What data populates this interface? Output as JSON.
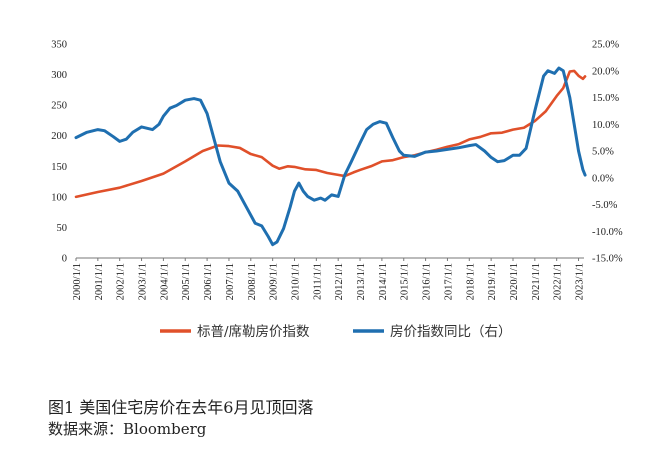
{
  "chart_data": {
    "type": "line",
    "x_start": "2000/1/1",
    "x_end": "2023/4/1",
    "x_tick_labels": [
      "2000/1/1",
      "2001/1/1",
      "2002/1/1",
      "2003/1/1",
      "2004/1/1",
      "2005/1/1",
      "2006/1/1",
      "2007/1/1",
      "2008/1/1",
      "2009/1/1",
      "2010/1/1",
      "2011/1/1",
      "2012/1/1",
      "2013/1/1",
      "2014/1/1",
      "2015/1/1",
      "2016/1/1",
      "2017/1/1",
      "2018/1/1",
      "2019/1/1",
      "2020/1/1",
      "2021/1/1",
      "2022/1/1",
      "2023/1/1"
    ],
    "y_left": {
      "min": 0,
      "max": 350,
      "ticks": [
        "0",
        "50",
        "100",
        "150",
        "200",
        "250",
        "300",
        "350"
      ]
    },
    "y_right": {
      "min": -15,
      "max": 25,
      "ticks": [
        "-15.0%",
        "-10.0%",
        "-5.0%",
        "0.0%",
        "5.0%",
        "10.0%",
        "15.0%",
        "20.0%",
        "25.0%"
      ]
    },
    "series": [
      {
        "name": "标普/席勒房价指数",
        "axis": "left",
        "color": "#e0502a",
        "points": [
          [
            2000.0,
            100
          ],
          [
            2001.0,
            108
          ],
          [
            2002.0,
            115
          ],
          [
            2003.0,
            126
          ],
          [
            2004.0,
            138
          ],
          [
            2005.0,
            158
          ],
          [
            2005.8,
            175
          ],
          [
            2006.5,
            184
          ],
          [
            2007.0,
            183
          ],
          [
            2007.5,
            180
          ],
          [
            2008.0,
            170
          ],
          [
            2008.5,
            165
          ],
          [
            2009.0,
            151
          ],
          [
            2009.3,
            146
          ],
          [
            2009.7,
            150
          ],
          [
            2010.0,
            149
          ],
          [
            2010.5,
            145
          ],
          [
            2011.0,
            144
          ],
          [
            2011.5,
            139
          ],
          [
            2012.0,
            136
          ],
          [
            2012.3,
            134
          ],
          [
            2012.7,
            140
          ],
          [
            2013.0,
            144
          ],
          [
            2013.5,
            150
          ],
          [
            2014.0,
            158
          ],
          [
            2014.5,
            160
          ],
          [
            2015.0,
            165
          ],
          [
            2015.5,
            168
          ],
          [
            2016.0,
            173
          ],
          [
            2016.5,
            177
          ],
          [
            2017.0,
            182
          ],
          [
            2017.5,
            186
          ],
          [
            2018.0,
            194
          ],
          [
            2018.5,
            198
          ],
          [
            2019.0,
            204
          ],
          [
            2019.5,
            205
          ],
          [
            2020.0,
            210
          ],
          [
            2020.5,
            213
          ],
          [
            2021.0,
            224
          ],
          [
            2021.5,
            240
          ],
          [
            2022.0,
            265
          ],
          [
            2022.3,
            278
          ],
          [
            2022.6,
            305
          ],
          [
            2022.8,
            306
          ],
          [
            2023.0,
            298
          ],
          [
            2023.2,
            293
          ],
          [
            2023.3,
            297
          ]
        ]
      },
      {
        "name": "房价指数同比（右）",
        "axis": "right",
        "color": "#1f6fb0",
        "points": [
          [
            2000.0,
            7.5
          ],
          [
            2000.5,
            8.5
          ],
          [
            2001.0,
            9.0
          ],
          [
            2001.3,
            8.8
          ],
          [
            2001.7,
            7.7
          ],
          [
            2002.0,
            6.8
          ],
          [
            2002.3,
            7.2
          ],
          [
            2002.6,
            8.5
          ],
          [
            2003.0,
            9.5
          ],
          [
            2003.5,
            9.0
          ],
          [
            2003.8,
            10.0
          ],
          [
            2004.0,
            11.5
          ],
          [
            2004.3,
            13.0
          ],
          [
            2004.6,
            13.5
          ],
          [
            2005.0,
            14.5
          ],
          [
            2005.4,
            14.8
          ],
          [
            2005.7,
            14.5
          ],
          [
            2006.0,
            12.0
          ],
          [
            2006.3,
            7.5
          ],
          [
            2006.6,
            3.0
          ],
          [
            2007.0,
            -1.0
          ],
          [
            2007.4,
            -2.5
          ],
          [
            2007.8,
            -5.5
          ],
          [
            2008.2,
            -8.5
          ],
          [
            2008.5,
            -9.0
          ],
          [
            2008.8,
            -11.0
          ],
          [
            2009.0,
            -12.5
          ],
          [
            2009.2,
            -12.0
          ],
          [
            2009.5,
            -9.5
          ],
          [
            2009.8,
            -5.5
          ],
          [
            2010.0,
            -2.5
          ],
          [
            2010.2,
            -1.0
          ],
          [
            2010.4,
            -2.5
          ],
          [
            2010.6,
            -3.5
          ],
          [
            2010.9,
            -4.2
          ],
          [
            2011.2,
            -3.8
          ],
          [
            2011.4,
            -4.2
          ],
          [
            2011.7,
            -3.2
          ],
          [
            2012.0,
            -3.5
          ],
          [
            2012.3,
            0.5
          ],
          [
            2012.6,
            3.0
          ],
          [
            2013.0,
            6.5
          ],
          [
            2013.3,
            9.0
          ],
          [
            2013.6,
            10.0
          ],
          [
            2013.9,
            10.5
          ],
          [
            2014.2,
            10.2
          ],
          [
            2014.5,
            7.5
          ],
          [
            2014.8,
            5.0
          ],
          [
            2015.0,
            4.2
          ],
          [
            2015.5,
            4.0
          ],
          [
            2016.0,
            4.8
          ],
          [
            2016.5,
            5.0
          ],
          [
            2017.0,
            5.3
          ],
          [
            2017.5,
            5.6
          ],
          [
            2018.0,
            6.0
          ],
          [
            2018.3,
            6.2
          ],
          [
            2018.7,
            5.0
          ],
          [
            2019.0,
            3.8
          ],
          [
            2019.3,
            3.0
          ],
          [
            2019.6,
            3.2
          ],
          [
            2020.0,
            4.2
          ],
          [
            2020.3,
            4.2
          ],
          [
            2020.6,
            5.5
          ],
          [
            2021.0,
            12.5
          ],
          [
            2021.4,
            19.0
          ],
          [
            2021.6,
            20.0
          ],
          [
            2021.9,
            19.5
          ],
          [
            2022.1,
            20.5
          ],
          [
            2022.3,
            20.0
          ],
          [
            2022.6,
            15.0
          ],
          [
            2022.8,
            10.0
          ],
          [
            2023.0,
            5.0
          ],
          [
            2023.2,
            1.5
          ],
          [
            2023.3,
            0.5
          ]
        ]
      }
    ],
    "legend_position": "bottom"
  },
  "caption": {
    "title": "图1   美国住宅房价在去年6月见顶回落",
    "source": "数据来源：Bloomberg"
  }
}
